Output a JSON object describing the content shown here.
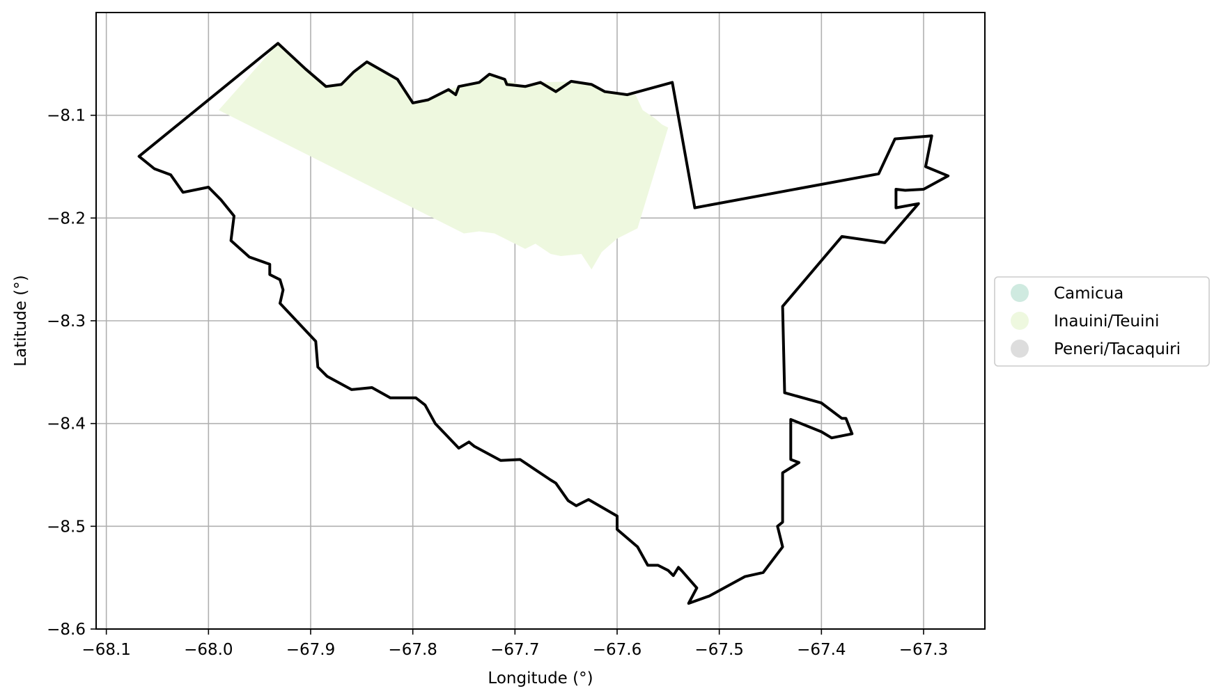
{
  "map": {
    "x_axis_label": "Longitude (°)",
    "y_axis_label": "Latitude (°)",
    "xlim": [
      -68.11,
      -67.24
    ],
    "ylim": [
      -8.6,
      -8.0
    ],
    "x_ticks": [
      {
        "value": -68.1,
        "label": "−68.1"
      },
      {
        "value": -68.0,
        "label": "−68.0"
      },
      {
        "value": -67.9,
        "label": "−67.9"
      },
      {
        "value": -67.8,
        "label": "−67.8"
      },
      {
        "value": -67.7,
        "label": "−67.7"
      },
      {
        "value": -67.6,
        "label": "−67.6"
      },
      {
        "value": -67.5,
        "label": "−67.5"
      },
      {
        "value": -67.4,
        "label": "−67.4"
      },
      {
        "value": -67.3,
        "label": "−67.3"
      }
    ],
    "y_ticks": [
      {
        "value": -8.1,
        "label": "−8.1"
      },
      {
        "value": -8.2,
        "label": "−8.2"
      },
      {
        "value": -8.3,
        "label": "−8.3"
      },
      {
        "value": -8.4,
        "label": "−8.4"
      },
      {
        "value": -8.5,
        "label": "−8.5"
      },
      {
        "value": -8.6,
        "label": "−8.6"
      }
    ],
    "grid": true,
    "legend_position": "right",
    "legend": [
      {
        "label": "Camicua",
        "color": "#cfeae0"
      },
      {
        "label": "Inauini/Teuini",
        "color": "#eef8df"
      },
      {
        "label": "Peneri/Tacaquiri",
        "color": "#dddddd"
      }
    ],
    "region_fill": {
      "name": "Inauini/Teuini",
      "color": "#eef8df",
      "coordinates": [
        [
          -67.99,
          -8.095
        ],
        [
          -67.932,
          -8.03
        ],
        [
          -67.905,
          -8.055
        ],
        [
          -67.885,
          -8.072
        ],
        [
          -67.87,
          -8.07
        ],
        [
          -67.845,
          -8.048
        ],
        [
          -67.815,
          -8.065
        ],
        [
          -67.8,
          -8.088
        ],
        [
          -67.785,
          -8.085
        ],
        [
          -67.765,
          -8.075
        ],
        [
          -67.755,
          -8.072
        ],
        [
          -67.735,
          -8.068
        ],
        [
          -67.725,
          -8.06
        ],
        [
          -67.71,
          -8.065
        ],
        [
          -67.69,
          -8.072
        ],
        [
          -67.675,
          -8.068
        ],
        [
          -67.64,
          -8.067
        ],
        [
          -67.625,
          -8.07
        ],
        [
          -67.612,
          -8.077
        ],
        [
          -67.59,
          -8.08
        ],
        [
          -67.582,
          -8.08
        ],
        [
          -67.575,
          -8.095
        ],
        [
          -67.563,
          -8.103
        ],
        [
          -67.556,
          -8.109
        ],
        [
          -67.55,
          -8.112
        ],
        [
          -67.58,
          -8.21
        ],
        [
          -67.6,
          -8.22
        ],
        [
          -67.615,
          -8.233
        ],
        [
          -67.625,
          -8.25
        ],
        [
          -67.635,
          -8.235
        ],
        [
          -67.655,
          -8.237
        ],
        [
          -67.665,
          -8.235
        ],
        [
          -67.68,
          -8.225
        ],
        [
          -67.69,
          -8.23
        ],
        [
          -67.7,
          -8.225
        ],
        [
          -67.72,
          -8.215
        ],
        [
          -67.735,
          -8.213
        ],
        [
          -67.75,
          -8.215
        ]
      ]
    },
    "boundary": {
      "color": "#000000",
      "coordinates": [
        [
          -68.068,
          -8.14
        ],
        [
          -67.932,
          -8.03
        ],
        [
          -67.905,
          -8.055
        ],
        [
          -67.885,
          -8.072
        ],
        [
          -67.87,
          -8.07
        ],
        [
          -67.858,
          -8.058
        ],
        [
          -67.845,
          -8.048
        ],
        [
          -67.815,
          -8.065
        ],
        [
          -67.8,
          -8.088
        ],
        [
          -67.785,
          -8.085
        ],
        [
          -67.765,
          -8.075
        ],
        [
          -67.758,
          -8.08
        ],
        [
          -67.755,
          -8.072
        ],
        [
          -67.735,
          -8.068
        ],
        [
          -67.725,
          -8.06
        ],
        [
          -67.71,
          -8.065
        ],
        [
          -67.708,
          -8.07
        ],
        [
          -67.69,
          -8.072
        ],
        [
          -67.675,
          -8.068
        ],
        [
          -67.66,
          -8.077
        ],
        [
          -67.645,
          -8.067
        ],
        [
          -67.625,
          -8.07
        ],
        [
          -67.612,
          -8.077
        ],
        [
          -67.59,
          -8.08
        ],
        [
          -67.546,
          -8.068
        ],
        [
          -67.524,
          -8.19
        ],
        [
          -67.344,
          -8.157
        ],
        [
          -67.328,
          -8.123
        ],
        [
          -67.292,
          -8.12
        ],
        [
          -67.298,
          -8.15
        ],
        [
          -67.276,
          -8.159
        ],
        [
          -67.3,
          -8.172
        ],
        [
          -67.318,
          -8.173
        ],
        [
          -67.327,
          -8.172
        ],
        [
          -67.327,
          -8.19
        ],
        [
          -67.305,
          -8.186
        ],
        [
          -67.338,
          -8.224
        ],
        [
          -67.38,
          -8.218
        ],
        [
          -67.438,
          -8.286
        ],
        [
          -67.436,
          -8.37
        ],
        [
          -67.4,
          -8.38
        ],
        [
          -67.38,
          -8.395
        ],
        [
          -67.376,
          -8.395
        ],
        [
          -67.37,
          -8.41
        ],
        [
          -67.39,
          -8.414
        ],
        [
          -67.4,
          -8.408
        ],
        [
          -67.43,
          -8.396
        ],
        [
          -67.43,
          -8.435
        ],
        [
          -67.422,
          -8.438
        ],
        [
          -67.438,
          -8.448
        ],
        [
          -67.438,
          -8.496
        ],
        [
          -67.443,
          -8.5
        ],
        [
          -67.438,
          -8.52
        ],
        [
          -67.457,
          -8.545
        ],
        [
          -67.475,
          -8.549
        ],
        [
          -67.51,
          -8.568
        ],
        [
          -67.53,
          -8.575
        ],
        [
          -67.522,
          -8.56
        ],
        [
          -67.537,
          -8.543
        ],
        [
          -67.54,
          -8.54
        ],
        [
          -67.545,
          -8.548
        ],
        [
          -67.55,
          -8.543
        ],
        [
          -67.56,
          -8.538
        ],
        [
          -67.57,
          -8.538
        ],
        [
          -67.58,
          -8.52
        ],
        [
          -67.6,
          -8.503
        ],
        [
          -67.6,
          -8.49
        ],
        [
          -67.628,
          -8.474
        ],
        [
          -67.64,
          -8.48
        ],
        [
          -67.648,
          -8.475
        ],
        [
          -67.66,
          -8.458
        ],
        [
          -67.665,
          -8.455
        ],
        [
          -67.695,
          -8.435
        ],
        [
          -67.714,
          -8.436
        ],
        [
          -67.74,
          -8.422
        ],
        [
          -67.745,
          -8.418
        ],
        [
          -67.755,
          -8.424
        ],
        [
          -67.778,
          -8.4
        ],
        [
          -67.788,
          -8.382
        ],
        [
          -67.797,
          -8.375
        ],
        [
          -67.822,
          -8.375
        ],
        [
          -67.84,
          -8.365
        ],
        [
          -67.86,
          -8.367
        ],
        [
          -67.884,
          -8.354
        ],
        [
          -67.893,
          -8.345
        ],
        [
          -67.895,
          -8.32
        ],
        [
          -67.93,
          -8.283
        ],
        [
          -67.927,
          -8.27
        ],
        [
          -67.93,
          -8.26
        ],
        [
          -67.94,
          -8.255
        ],
        [
          -67.94,
          -8.245
        ],
        [
          -67.96,
          -8.238
        ],
        [
          -67.978,
          -8.222
        ],
        [
          -67.975,
          -8.198
        ],
        [
          -67.988,
          -8.182
        ],
        [
          -68.0,
          -8.17
        ],
        [
          -68.025,
          -8.175
        ],
        [
          -68.037,
          -8.158
        ],
        [
          -68.053,
          -8.152
        ],
        [
          -68.068,
          -8.14
        ]
      ]
    }
  }
}
